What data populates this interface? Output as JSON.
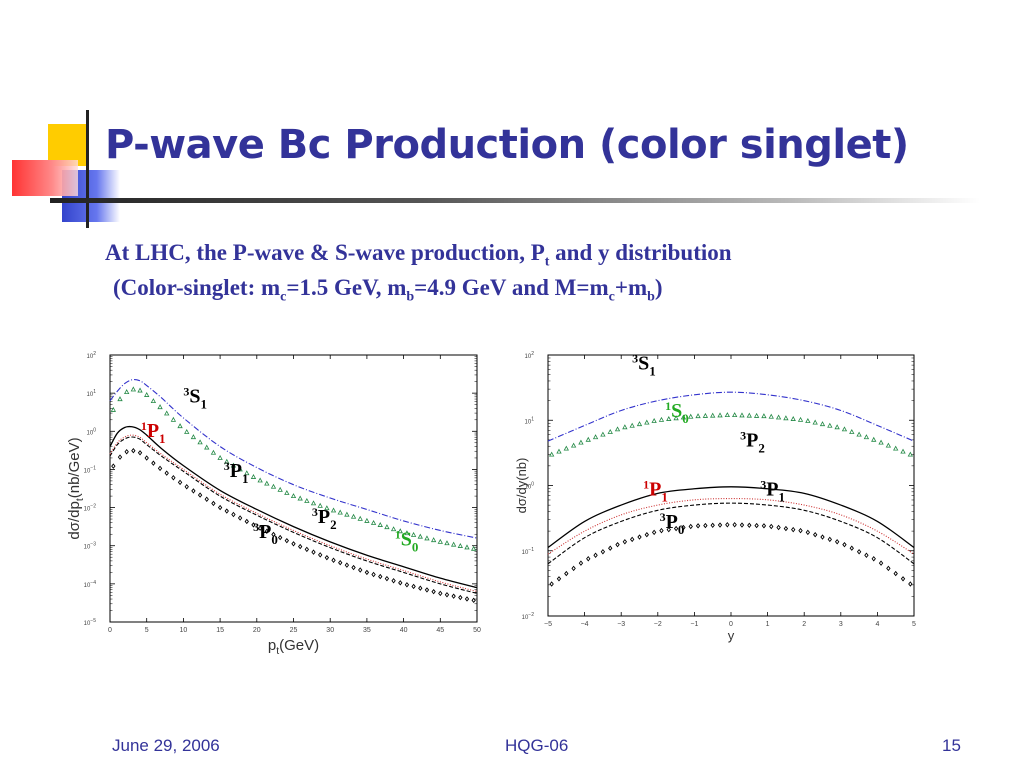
{
  "slide": {
    "title": "P-wave Bc Production (color singlet)",
    "subtitle_line1": {
      "main": "At LHC, the P-wave & S-wave production, P",
      "sub": "t",
      "rest": " and y distribution"
    },
    "subtitle_line2": {
      "a": "(Color-singlet: m",
      "a_sub": "c",
      "b": "=1.5 GeV, m",
      "b_sub": "b",
      "c": "=4.9 GeV and M=m",
      "c_sub": "c",
      "d": "+m",
      "d_sub": "b",
      "e": ")"
    },
    "footer": {
      "date": "June 29, 2006",
      "center": "HQG-06",
      "page": "15"
    }
  },
  "colors": {
    "text_blue": "#333399",
    "red": "#cc0000",
    "green": "#22aa22",
    "black": "#000000",
    "series_blue": "#3333cc",
    "series_green": "#228844",
    "deco_yellow": "#ffcc00",
    "deco_blue": "#3344cc",
    "deco_red": "#ff5555"
  },
  "chart_data": [
    {
      "type": "line",
      "xlabel": "p",
      "xlabel_sub": "t",
      "xlabel_unit": "(GeV)",
      "ylabel": "dσ/dp",
      "ylabel_sub": "t",
      "ylabel_unit": "(nb/GeV)",
      "xlim": [
        0,
        50
      ],
      "ylim_log10": [
        -5,
        2
      ],
      "log_y": true,
      "x_ticks": [
        0,
        5,
        10,
        15,
        20,
        25,
        30,
        35,
        40,
        45,
        50
      ],
      "y_ticks": [
        {
          "base": "10",
          "exp": "2"
        },
        {
          "base": "10",
          "exp": "1"
        },
        {
          "base": "10",
          "exp": "0"
        },
        {
          "base": "10",
          "exp": "-1"
        },
        {
          "base": "10",
          "exp": "-2"
        },
        {
          "base": "10",
          "exp": "-3"
        },
        {
          "base": "10",
          "exp": "-4"
        },
        {
          "base": "10",
          "exp": "-5"
        }
      ],
      "series": [
        {
          "style": "dashdot",
          "color": "#3333cc",
          "x": [
            0,
            1,
            2,
            3,
            4,
            5,
            7,
            10,
            15,
            20,
            25,
            30,
            35,
            40,
            45,
            50
          ],
          "log10_y": [
            0.8,
            1.05,
            1.25,
            1.35,
            1.33,
            1.2,
            0.88,
            0.35,
            -0.4,
            -0.95,
            -1.4,
            -1.75,
            -2.05,
            -2.35,
            -2.6,
            -2.8
          ]
        },
        {
          "style": "triangles",
          "color": "#228844",
          "x": [
            0,
            1,
            2,
            3,
            4,
            5,
            7,
            10,
            15,
            20,
            25,
            30,
            35,
            40,
            45,
            50
          ],
          "log10_y": [
            0.4,
            0.75,
            1.0,
            1.1,
            1.08,
            0.95,
            0.6,
            0.05,
            -0.7,
            -1.25,
            -1.7,
            -2.05,
            -2.35,
            -2.65,
            -2.9,
            -3.1
          ]
        },
        {
          "style": "solid",
          "color": "#000000",
          "x": [
            0,
            1,
            2,
            3,
            4,
            5,
            7,
            10,
            15,
            20,
            25,
            30,
            35,
            40,
            45,
            50
          ],
          "log10_y": [
            -0.4,
            -0.05,
            0.1,
            0.12,
            0.05,
            -0.1,
            -0.45,
            -0.9,
            -1.55,
            -2.05,
            -2.5,
            -2.9,
            -3.25,
            -3.55,
            -3.85,
            -4.1
          ]
        },
        {
          "style": "dashed",
          "color": "#000000",
          "x": [
            0,
            1,
            2,
            3,
            4,
            5,
            7,
            10,
            15,
            20,
            25,
            30,
            35,
            40,
            45,
            50
          ],
          "log10_y": [
            -0.65,
            -0.35,
            -0.2,
            -0.15,
            -0.2,
            -0.35,
            -0.65,
            -1.05,
            -1.7,
            -2.2,
            -2.65,
            -3.05,
            -3.4,
            -3.7,
            -4.0,
            -4.25
          ]
        },
        {
          "style": "dotted",
          "color": "#cc3333",
          "x": [
            0,
            1,
            2,
            3,
            4,
            5,
            7,
            10,
            15,
            20,
            25,
            30,
            35,
            40,
            45,
            50
          ],
          "log10_y": [
            -0.6,
            -0.3,
            -0.15,
            -0.1,
            -0.15,
            -0.3,
            -0.6,
            -1.0,
            -1.65,
            -2.15,
            -2.6,
            -3.0,
            -3.35,
            -3.65,
            -3.95,
            -4.2
          ]
        },
        {
          "style": "diamonds",
          "color": "#000000",
          "x": [
            0,
            1,
            2,
            3,
            4,
            5,
            7,
            10,
            15,
            20,
            25,
            30,
            35,
            40,
            45,
            50
          ],
          "log10_y": [
            -1.05,
            -0.75,
            -0.55,
            -0.5,
            -0.55,
            -0.7,
            -1.0,
            -1.4,
            -2.0,
            -2.5,
            -2.95,
            -3.35,
            -3.7,
            -4.0,
            -4.25,
            -4.45
          ]
        }
      ],
      "annotations": [
        {
          "sup": "3",
          "main": "S",
          "sub": "1",
          "color": "#000000",
          "x": 10,
          "log10_y": 0.75
        },
        {
          "sup": "1",
          "main": "P",
          "sub": "1",
          "color": "#cc0000",
          "x": 4.2,
          "log10_y": -0.15
        },
        {
          "sup": "3",
          "main": "P",
          "sub": "1",
          "color": "#000000",
          "x": 15.5,
          "log10_y": -1.2
        },
        {
          "sup": "3",
          "main": "P",
          "sub": "2",
          "color": "#000000",
          "x": 27.5,
          "log10_y": -2.4
        },
        {
          "sup": "3",
          "main": "P",
          "sub": "0",
          "color": "#000000",
          "x": 19.5,
          "log10_y": -2.8
        },
        {
          "sup": "1",
          "main": "S",
          "sub": "0",
          "color": "#22aa22",
          "x": 38.8,
          "log10_y": -3.0
        }
      ]
    },
    {
      "type": "line",
      "xlabel": "y",
      "ylabel": "dσ/dy",
      "ylabel_unit": "(nb)",
      "xlim": [
        -5,
        5
      ],
      "ylim_log10": [
        -2,
        2
      ],
      "log_y": true,
      "x_ticks": [
        -5,
        -4,
        -3,
        -2,
        -1,
        0,
        1,
        2,
        3,
        4,
        5
      ],
      "y_ticks": [
        {
          "base": "10",
          "exp": "2"
        },
        {
          "base": "10",
          "exp": "1"
        },
        {
          "base": "10",
          "exp": "0"
        },
        {
          "base": "10",
          "exp": "-1"
        },
        {
          "base": "10",
          "exp": "-2"
        }
      ],
      "series": [
        {
          "style": "dashdot",
          "color": "#3333cc",
          "x": [
            -5,
            -4,
            -3,
            -2,
            -1,
            0,
            1,
            2,
            3,
            4,
            5
          ],
          "log10_y": [
            0.68,
            0.92,
            1.15,
            1.3,
            1.39,
            1.43,
            1.39,
            1.3,
            1.15,
            0.92,
            0.68
          ]
        },
        {
          "style": "triangles",
          "color": "#228844",
          "x": [
            -5,
            -4,
            -3,
            -2,
            -1,
            0,
            1,
            2,
            3,
            4,
            5
          ],
          "log10_y": [
            0.45,
            0.68,
            0.88,
            1.0,
            1.06,
            1.08,
            1.06,
            1.0,
            0.88,
            0.68,
            0.45
          ]
        },
        {
          "style": "solid",
          "color": "#000000",
          "x": [
            -5,
            -4,
            -3,
            -2,
            -1,
            0,
            1,
            2,
            3,
            4,
            5
          ],
          "log10_y": [
            -0.95,
            -0.55,
            -0.3,
            -0.12,
            -0.05,
            -0.02,
            -0.05,
            -0.12,
            -0.3,
            -0.55,
            -0.95
          ]
        },
        {
          "style": "dotted",
          "color": "#cc3333",
          "x": [
            -5,
            -4,
            -3,
            -2,
            -1,
            0,
            1,
            2,
            3,
            4,
            5
          ],
          "log10_y": [
            -1.05,
            -0.7,
            -0.45,
            -0.3,
            -0.22,
            -0.2,
            -0.22,
            -0.3,
            -0.45,
            -0.7,
            -1.05
          ]
        },
        {
          "style": "dashed",
          "color": "#000000",
          "x": [
            -5,
            -4,
            -3,
            -2,
            -1,
            0,
            1,
            2,
            3,
            4,
            5
          ],
          "log10_y": [
            -1.2,
            -0.8,
            -0.55,
            -0.38,
            -0.3,
            -0.27,
            -0.3,
            -0.38,
            -0.55,
            -0.8,
            -1.2
          ]
        },
        {
          "style": "diamonds",
          "color": "#000000",
          "x": [
            -5,
            -4,
            -3,
            -2,
            -1,
            0,
            1,
            2,
            3,
            4,
            5
          ],
          "log10_y": [
            -1.55,
            -1.15,
            -0.88,
            -0.7,
            -0.62,
            -0.6,
            -0.62,
            -0.7,
            -0.88,
            -1.15,
            -1.55
          ]
        }
      ],
      "annotations": [
        {
          "sup": "3",
          "main": "S",
          "sub": "1",
          "color": "#000000",
          "x": -2.7,
          "log10_y": 1.78
        },
        {
          "sup": "1",
          "main": "S",
          "sub": "0",
          "color": "#22aa22",
          "x": -1.8,
          "log10_y": 1.05
        },
        {
          "sup": "3",
          "main": "P",
          "sub": "2",
          "color": "#000000",
          "x": 0.25,
          "log10_y": 0.6
        },
        {
          "sup": "1",
          "main": "P",
          "sub": "1",
          "color": "#cc0000",
          "x": -2.4,
          "log10_y": -0.15
        },
        {
          "sup": "3",
          "main": "P",
          "sub": "1",
          "color": "#000000",
          "x": 0.8,
          "log10_y": -0.15
        },
        {
          "sup": "3",
          "main": "P",
          "sub": "0",
          "color": "#000000",
          "x": -1.95,
          "log10_y": -0.65
        }
      ]
    }
  ]
}
